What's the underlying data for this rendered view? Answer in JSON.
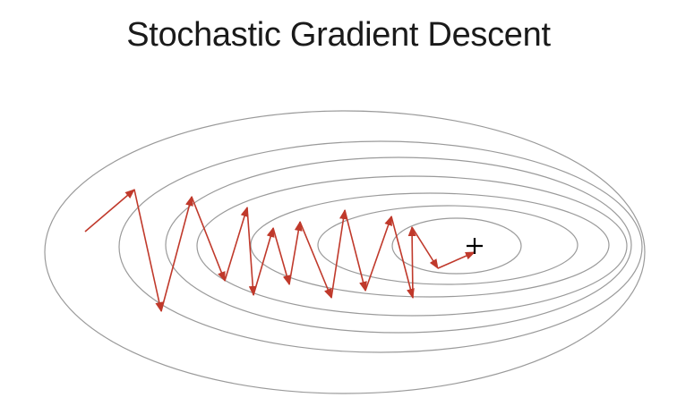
{
  "title": "Stochastic Gradient Descent",
  "colors": {
    "contour": "#9a9a9a",
    "path": "#c0392b",
    "minimum_marker": "#000000",
    "background": "#ffffff"
  },
  "icons": {
    "minimum": "plus-icon"
  }
}
